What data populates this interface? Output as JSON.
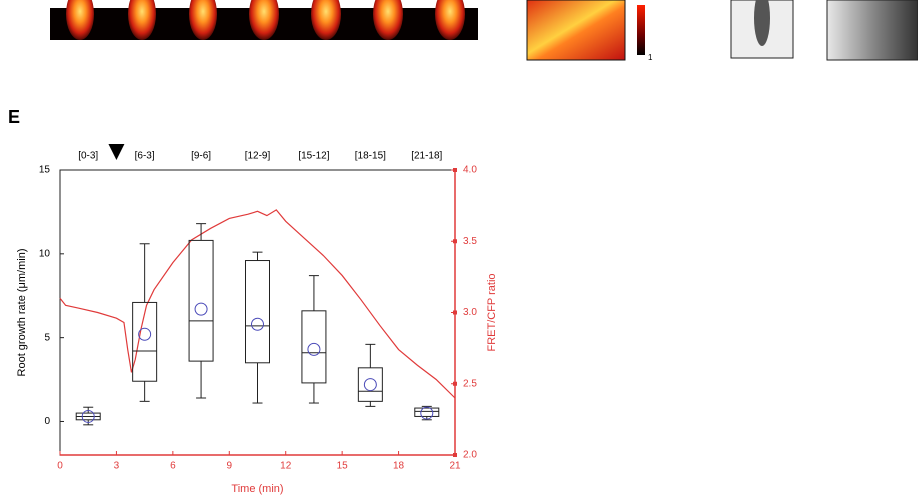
{
  "panel_label": "E",
  "colorbar_label": "1",
  "chart_data": {
    "type": "box",
    "xlabel": "Time (min)",
    "ylabel": "Root growth rate (μm/min)",
    "y2label": "FRET/CFP ratio",
    "categories": [
      "[0-3]",
      "[6-3]",
      "[9-6]",
      "[12-9]",
      "[15-12]",
      "[18-15]",
      "[21-18]"
    ],
    "boxes": [
      {
        "low": -0.2,
        "q1": 0.1,
        "median": 0.3,
        "q3": 0.5,
        "high": 0.85,
        "mean": 0.3
      },
      {
        "low": 1.2,
        "q1": 2.4,
        "median": 4.2,
        "q3": 7.1,
        "high": 10.6,
        "mean": 5.2
      },
      {
        "low": 1.4,
        "q1": 3.6,
        "median": 6.0,
        "q3": 10.8,
        "high": 11.8,
        "mean": 6.7
      },
      {
        "low": 1.1,
        "q1": 3.5,
        "median": 5.7,
        "q3": 9.6,
        "high": 10.1,
        "mean": 5.8
      },
      {
        "low": 1.1,
        "q1": 2.3,
        "median": 4.1,
        "q3": 6.6,
        "high": 8.7,
        "mean": 4.3
      },
      {
        "low": 0.9,
        "q1": 1.2,
        "median": 1.8,
        "q3": 3.2,
        "high": 4.6,
        "mean": 2.2
      },
      {
        "low": 0.1,
        "q1": 0.3,
        "median": 0.6,
        "q3": 0.8,
        "high": 0.9,
        "mean": 0.5
      }
    ],
    "box_color": "#222222",
    "mean_color": "#4a4ab8",
    "marker_x": 3,
    "line": {
      "color": "#e03a3a",
      "axis": "y2",
      "x": [
        0,
        0.3,
        1,
        2,
        3,
        3.4,
        3.6,
        3.8,
        4.0,
        4.3,
        4.6,
        5,
        6,
        7,
        8,
        9,
        10,
        10.5,
        11,
        11.5,
        12,
        13,
        14,
        15,
        16,
        17,
        18,
        19,
        20,
        21
      ],
      "values": [
        3.1,
        3.05,
        3.03,
        3.0,
        2.96,
        2.93,
        2.74,
        2.58,
        2.67,
        2.88,
        3.05,
        3.16,
        3.35,
        3.51,
        3.59,
        3.66,
        3.69,
        3.71,
        3.68,
        3.72,
        3.64,
        3.52,
        3.4,
        3.26,
        3.09,
        2.91,
        2.74,
        2.63,
        2.53,
        2.4
      ]
    },
    "xlim": [
      0,
      21
    ],
    "xticks": [
      0,
      3,
      6,
      9,
      12,
      15,
      18,
      21
    ],
    "ylim": [
      -2,
      15
    ],
    "yticks": [
      0,
      5,
      10,
      15
    ],
    "y2lim": [
      2,
      4
    ],
    "y2ticks": [
      {
        "value": 2,
        "label": "2.0"
      },
      2.5,
      {
        "value": 3,
        "label": "3.0"
      },
      3.5,
      {
        "value": 4,
        "label": "4.0"
      }
    ],
    "y2_color": "#e03a3a"
  }
}
